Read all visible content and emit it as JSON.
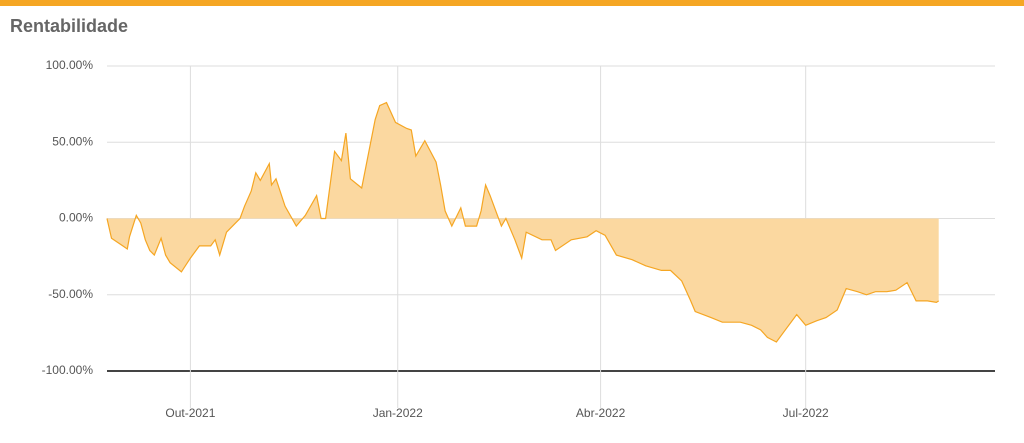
{
  "chart_data": {
    "type": "area",
    "title": "Rentabilidade",
    "x": [
      -37,
      -35,
      -30,
      -28,
      -27,
      -24,
      -22,
      -20,
      -18,
      -16,
      -13,
      -11,
      -9,
      -4,
      0,
      4,
      9,
      11,
      13,
      16,
      20,
      22,
      24,
      27,
      29,
      31,
      35,
      36,
      38,
      42,
      47,
      51,
      56,
      58,
      60,
      62,
      64,
      67,
      69,
      71,
      76,
      78,
      82,
      84,
      87,
      91,
      96,
      98,
      100,
      104,
      109,
      111,
      113,
      116,
      120,
      122,
      127,
      129,
      131,
      133,
      138,
      140,
      144,
      147,
      149,
      156,
      160,
      162,
      169,
      176,
      180,
      184,
      189,
      196,
      202,
      209,
      213,
      218,
      222,
      224,
      231,
      236,
      240,
      244,
      249,
      253,
      256,
      260,
      264,
      269,
      273,
      278,
      282,
      287,
      291,
      296,
      300,
      304,
      309,
      313,
      318,
      322,
      327,
      331,
      332
    ],
    "series": [
      {
        "color": "#f5a623",
        "fill": "#fbd8a0",
        "values": [
          0,
          -13,
          -18,
          -20,
          -12,
          2,
          -3,
          -14,
          -21,
          -24,
          -13,
          -24,
          -29,
          -35,
          -26,
          -18,
          -18,
          -14,
          -24,
          -9,
          -3,
          0,
          8,
          18,
          30,
          25,
          36,
          22,
          26,
          8,
          -5,
          2,
          15,
          0,
          0,
          22,
          44,
          38,
          56,
          26,
          20,
          35,
          65,
          74,
          76,
          63,
          59,
          58,
          41,
          51,
          37,
          22,
          5,
          -5,
          7,
          -5,
          -5,
          5,
          22,
          15,
          -5,
          0,
          -14,
          -26,
          -9,
          -14,
          -14,
          -21,
          -14,
          -12,
          -8,
          -11,
          -24,
          -27,
          -31,
          -34,
          -34,
          -41,
          -54,
          -61,
          -65,
          -68,
          -68,
          -68,
          -70,
          -73,
          -78,
          -81,
          -73,
          -63,
          -70,
          -67,
          -65,
          -60,
          -46,
          -48,
          -50,
          -48,
          -48,
          -47,
          -42,
          -54,
          -54,
          -55,
          -54
        ]
      }
    ],
    "xlim": [
      -37,
      357
    ],
    "xticks": [
      {
        "value": 0,
        "label": "Out-2021"
      },
      {
        "value": 92,
        "label": "Jan-2022"
      },
      {
        "value": 182,
        "label": "Abr-2022"
      },
      {
        "value": 273,
        "label": "Jul-2022"
      }
    ],
    "ylim": [
      -100,
      100
    ],
    "yticks": [
      {
        "value": 100,
        "label": "100.00%"
      },
      {
        "value": 50,
        "label": "50.00%"
      },
      {
        "value": 0,
        "label": "0.00%"
      },
      {
        "value": -50,
        "label": "-50.00%"
      },
      {
        "value": -100,
        "label": "-100.00%"
      }
    ],
    "grid": true
  }
}
